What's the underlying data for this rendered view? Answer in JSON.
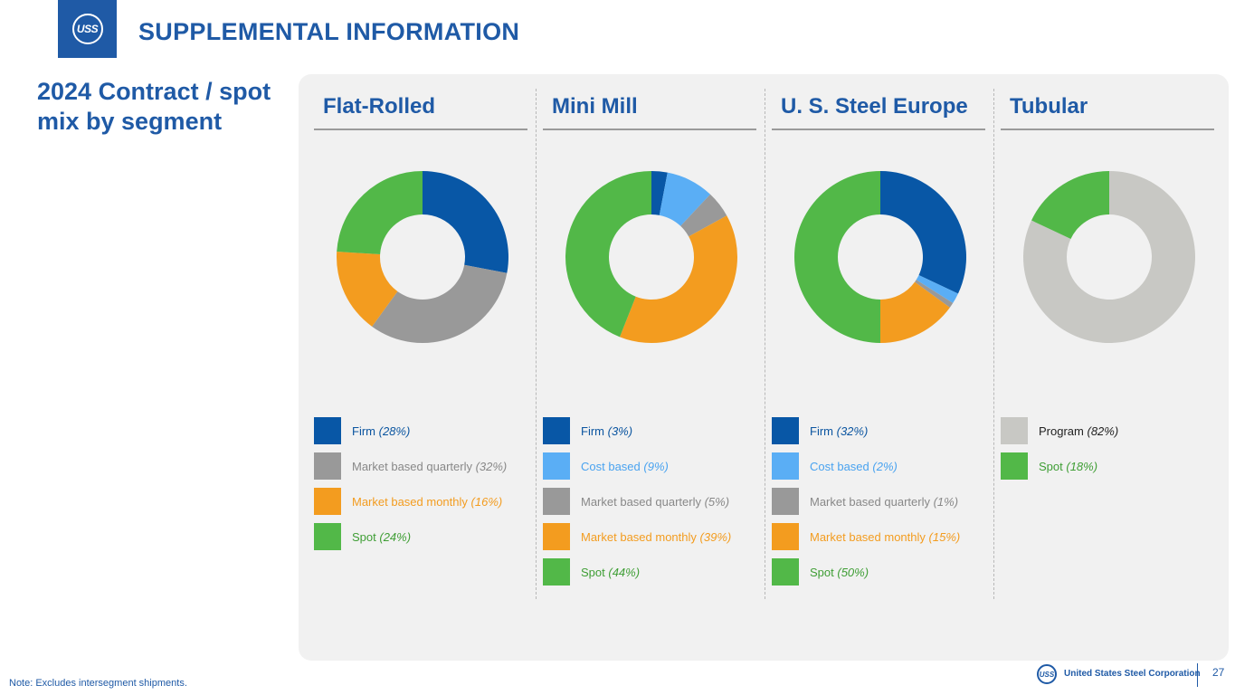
{
  "header": {
    "logo_text": "USS",
    "title": "SUPPLEMENTAL INFORMATION"
  },
  "subtitle": "2024 Contract / spot mix by segment",
  "chart_data": [
    {
      "type": "pie",
      "title": "Flat-Rolled",
      "donut": true,
      "slices": [
        {
          "label": "Firm",
          "value": 28,
          "display": "(28%)",
          "color": "#0857a6"
        },
        {
          "label": "Market based quarterly",
          "value": 32,
          "display": "(32%)",
          "color": "#999999"
        },
        {
          "label": "Market based monthly",
          "value": 16,
          "display": "(16%)",
          "color": "#f39c1f"
        },
        {
          "label": "Spot",
          "value": 24,
          "display": "(24%)",
          "color": "#52b848"
        }
      ]
    },
    {
      "type": "pie",
      "title": "Mini Mill",
      "donut": true,
      "slices": [
        {
          "label": "Firm",
          "value": 3,
          "display": "(3%)",
          "color": "#0857a6"
        },
        {
          "label": "Cost based",
          "value": 9,
          "display": "(9%)",
          "color": "#5aaef5"
        },
        {
          "label": "Market based quarterly",
          "value": 5,
          "display": "(5%)",
          "color": "#999999"
        },
        {
          "label": "Market based monthly",
          "value": 39,
          "display": "(39%)",
          "color": "#f39c1f"
        },
        {
          "label": "Spot",
          "value": 44,
          "display": "(44%)",
          "color": "#52b848"
        }
      ]
    },
    {
      "type": "pie",
      "title": "U. S. Steel Europe",
      "donut": true,
      "slices": [
        {
          "label": "Firm",
          "value": 32,
          "display": "(32%)",
          "color": "#0857a6"
        },
        {
          "label": "Cost based",
          "value": 2,
          "display": "(2%)",
          "color": "#5aaef5"
        },
        {
          "label": "Market based quarterly",
          "value": 1,
          "display": "(1%)",
          "color": "#999999"
        },
        {
          "label": "Market based monthly",
          "value": 15,
          "display": "(15%)",
          "color": "#f39c1f"
        },
        {
          "label": "Spot",
          "value": 50,
          "display": "(50%)",
          "color": "#52b848"
        }
      ]
    },
    {
      "type": "pie",
      "title": "Tubular",
      "donut": true,
      "slices": [
        {
          "label": "Program",
          "value": 82,
          "display": "(82%)",
          "color": "#c8c8c4",
          "text_color": "#222222"
        },
        {
          "label": "Spot",
          "value": 18,
          "display": "(18%)",
          "color": "#52b848"
        }
      ]
    }
  ],
  "note": "Note:  Excludes intersegment shipments.",
  "footer": {
    "logo_text": "USS",
    "company": "United States Steel Corporation",
    "page_number": "27"
  }
}
